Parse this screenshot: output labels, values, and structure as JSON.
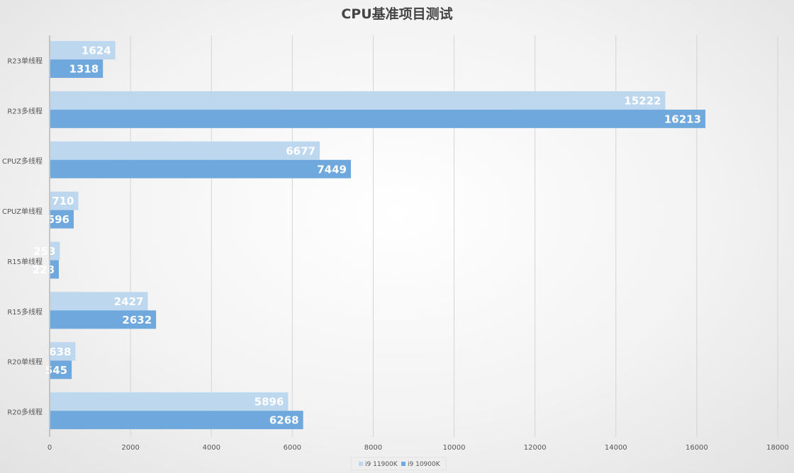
{
  "chart_data": {
    "type": "bar",
    "orientation": "horizontal",
    "title": "CPU基准项目测试",
    "categories": [
      "R23单线程",
      "R23多线程",
      "CPUZ多线程",
      "CPUZ单线程",
      "R15单线程",
      "R15多线程",
      "R20单线程",
      "R20多线程"
    ],
    "series": [
      {
        "name": "i9 11900K",
        "color": "#bdd7ee",
        "values": [
          1624,
          15222,
          6677,
          710,
          253,
          2427,
          638,
          5896
        ]
      },
      {
        "name": "i9 10900K",
        "color": "#6fa8dc",
        "values": [
          1318,
          16213,
          7449,
          596,
          228,
          2632,
          545,
          6268
        ]
      }
    ],
    "xlabel": "",
    "ylabel": "",
    "xlim": [
      0,
      18000
    ],
    "x_ticks": [
      0,
      2000,
      4000,
      6000,
      8000,
      10000,
      12000,
      14000,
      16000,
      18000
    ],
    "grid": true,
    "legend_position": "bottom",
    "data_labels": true
  }
}
